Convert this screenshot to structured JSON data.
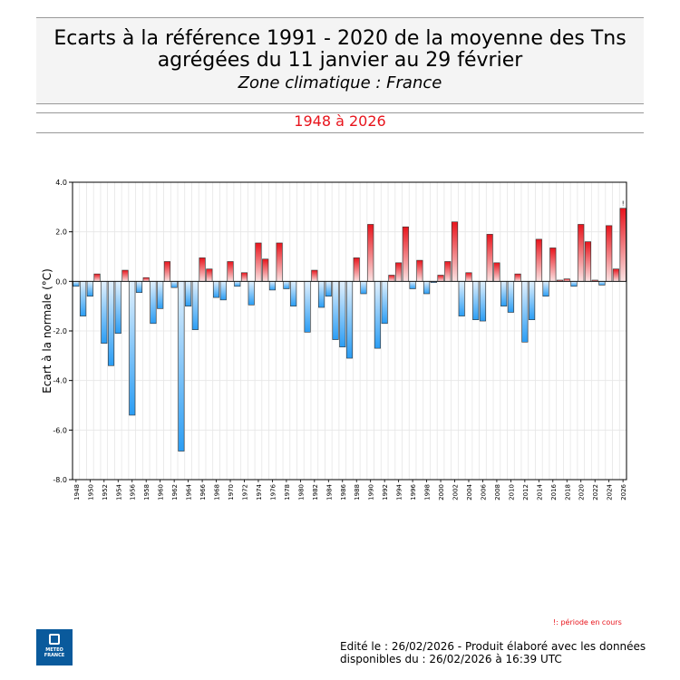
{
  "header": {
    "title_line1": "Ecarts à la référence 1991 - 2020 de la moyenne des Tns",
    "title_line2": "agrégées du 11 janvier au 29 février",
    "subtitle": "Zone climatique : France",
    "period": "1948 à 2026"
  },
  "chart_data": {
    "type": "bar",
    "ylabel": "Ecart à la normale (°C)",
    "ylim": [
      -8,
      4
    ],
    "yticks": [
      "4.0",
      "2.0",
      "0.0",
      "-2.0",
      "-4.0",
      "-6.0",
      "-8.0"
    ],
    "grid": true,
    "x": [
      1948,
      1949,
      1950,
      1951,
      1952,
      1953,
      1954,
      1955,
      1956,
      1957,
      1958,
      1959,
      1960,
      1961,
      1962,
      1963,
      1964,
      1965,
      1966,
      1967,
      1968,
      1969,
      1970,
      1971,
      1972,
      1973,
      1974,
      1975,
      1976,
      1977,
      1978,
      1979,
      1980,
      1981,
      1982,
      1983,
      1984,
      1985,
      1986,
      1987,
      1988,
      1989,
      1990,
      1991,
      1992,
      1993,
      1994,
      1995,
      1996,
      1997,
      1998,
      1999,
      2000,
      2001,
      2002,
      2003,
      2004,
      2005,
      2006,
      2007,
      2008,
      2009,
      2010,
      2011,
      2012,
      2013,
      2014,
      2015,
      2016,
      2017,
      2018,
      2019,
      2020,
      2021,
      2022,
      2023,
      2024,
      2025,
      2026
    ],
    "values": [
      -0.2,
      -1.4,
      -0.6,
      0.3,
      -2.5,
      -3.4,
      -2.1,
      0.45,
      -5.4,
      -0.45,
      0.15,
      -1.7,
      -1.1,
      0.8,
      -0.25,
      -6.85,
      -1.0,
      -1.95,
      0.95,
      0.5,
      -0.65,
      -0.75,
      0.8,
      -0.2,
      0.35,
      -0.95,
      1.55,
      0.9,
      -0.35,
      1.55,
      -0.3,
      -1.0,
      0.0,
      -2.05,
      0.45,
      -1.05,
      -0.6,
      -2.35,
      -2.65,
      -3.1,
      0.95,
      -0.5,
      2.3,
      -2.7,
      -1.7,
      0.25,
      0.75,
      2.2,
      -0.3,
      0.85,
      -0.5,
      -0.05,
      0.25,
      0.8,
      2.4,
      -1.4,
      0.35,
      -1.55,
      -1.6,
      1.9,
      0.75,
      -1.0,
      -1.25,
      0.3,
      -2.45,
      -1.55,
      1.7,
      -0.6,
      1.35,
      0.05,
      0.1,
      -0.2,
      2.3,
      1.6,
      0.05,
      -0.15,
      2.25,
      0.5,
      2.95
    ],
    "x_tick_labels": [
      "1948",
      "1950",
      "1952",
      "1954",
      "1956",
      "1958",
      "1960",
      "1962",
      "1964",
      "1966",
      "1968",
      "1970",
      "1972",
      "1974",
      "1976",
      "1978",
      "1980",
      "1982",
      "1984",
      "1986",
      "1988",
      "1990",
      "1992",
      "1994",
      "1996",
      "1998",
      "2000",
      "2002",
      "2004",
      "2006",
      "2008",
      "2010",
      "2012",
      "2014",
      "2016",
      "2018",
      "2020",
      "2022",
      "2024",
      "2026"
    ],
    "current_period_marker": "!",
    "colors": {
      "positive": "#e8141c",
      "negative": "#2a9df4"
    }
  },
  "note": "!: période en cours",
  "footer": {
    "line1": "Edité le : 26/02/2026 - Produit élaboré avec les données",
    "line2": "disponibles du : 26/02/2026 à 16:39 UTC"
  },
  "logo": {
    "line1": "METEO",
    "line2": "FRANCE",
    "icon": "meteo-france-logo"
  }
}
